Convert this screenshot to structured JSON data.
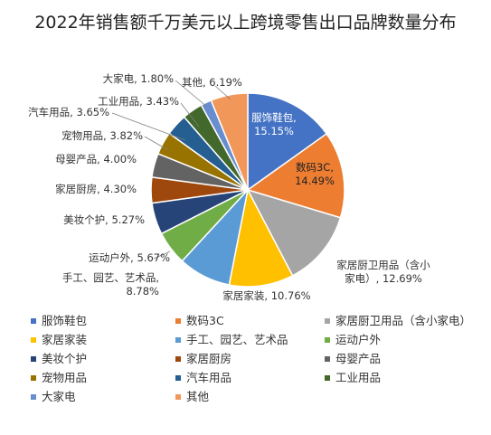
{
  "chart_data": {
    "type": "pie",
    "title": "2022年销售额千万美元以上跨境零售出口品牌数量分布",
    "slices": [
      {
        "name": "服饰鞋包",
        "value": 15.15,
        "label": "服饰鞋包,\n15.15%",
        "color": "#4472C4"
      },
      {
        "name": "数码3C",
        "value": 14.49,
        "label": "数码3C,\n14.49%",
        "color": "#ED7D31"
      },
      {
        "name": "家居厨卫用品（含小家电）",
        "value": 12.69,
        "label": "家居厨卫用品（含小\n家电）, 12.69%",
        "color": "#A5A5A5"
      },
      {
        "name": "家居家装",
        "value": 10.76,
        "label": "家居家装, 10.76%",
        "color": "#FFC000"
      },
      {
        "name": "手工、园艺、艺术品",
        "value": 8.78,
        "label": "手工、园艺、艺术品,\n8.78%",
        "color": "#5B9BD5"
      },
      {
        "name": "运动户外",
        "value": 5.67,
        "label": "运动户外, 5.67%",
        "color": "#70AD47"
      },
      {
        "name": "美妆个护",
        "value": 5.27,
        "label": "美妆个护, 5.27%",
        "color": "#264478"
      },
      {
        "name": "家居厨房",
        "value": 4.3,
        "label": "家居厨房, 4.30%",
        "color": "#9E480E"
      },
      {
        "name": "母婴产品",
        "value": 4.0,
        "label": "母婴产品, 4.00%",
        "color": "#636363"
      },
      {
        "name": "宠物用品",
        "value": 3.82,
        "label": "宠物用品, 3.82%",
        "color": "#997300"
      },
      {
        "name": "汽车用品",
        "value": 3.65,
        "label": "汽车用品, 3.65%",
        "color": "#255E91"
      },
      {
        "name": "工业用品",
        "value": 3.43,
        "label": "工业用品, 3.43%",
        "color": "#43682B"
      },
      {
        "name": "大家电",
        "value": 1.8,
        "label": "大家电, 1.80%",
        "color": "#698ED0"
      },
      {
        "name": "其他",
        "value": 6.19,
        "label": "其他, 6.19%",
        "color": "#F1975A"
      }
    ],
    "legend_position": "bottom"
  }
}
